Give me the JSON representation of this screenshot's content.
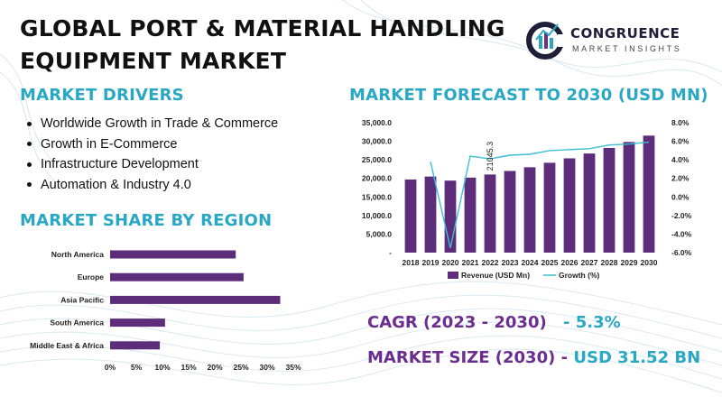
{
  "header": {
    "title_line1": "GLOBAL PORT & MATERIAL HANDLING",
    "title_line2": "EQUIPMENT MARKET"
  },
  "logo": {
    "name": "CONGRUENCE",
    "subtitle": "MARKET INSIGHTS",
    "icon": "cm-logo-icon"
  },
  "drivers": {
    "heading": "MARKET DRIVERS",
    "items": [
      "Worldwide Growth in Trade & Commerce",
      "Growth in E-Commerce",
      "Infrastructure Development",
      "Automation & Industry 4.0"
    ]
  },
  "share": {
    "heading": "MARKET SHARE BY REGION"
  },
  "forecast": {
    "heading": "MARKET FORECAST TO 2030 (USD MN)"
  },
  "stats": {
    "cagr_label": "CAGR (2023 - 2030)",
    "cagr_value": "- 5.3%",
    "size_label": "MARKET SIZE (2030)",
    "size_sep": "-",
    "size_value": "USD 31.52 BN"
  },
  "colors": {
    "accent": "#29a8c4",
    "brand_purple": "#6b2d8e",
    "bar_purple": "#5e2d79",
    "growth_line": "#3bbfd6"
  },
  "chart_data": [
    {
      "type": "bar",
      "orientation": "horizontal",
      "title": "MARKET SHARE BY REGION",
      "categories": [
        "North America",
        "Europe",
        "Asia Pacific",
        "South America",
        "Middle East & Africa"
      ],
      "values": [
        24,
        25.5,
        32.5,
        10.5,
        9.5
      ],
      "xlim": [
        0,
        35
      ],
      "ticks": [
        "0%",
        "5%",
        "10%",
        "15%",
        "20%",
        "25%",
        "30%",
        "35%"
      ],
      "grid": false
    },
    {
      "type": "bar",
      "title": "MARKET FORECAST TO 2030 (USD MN)",
      "categories": [
        "2018",
        "2019",
        "2020",
        "2021",
        "2022",
        "2023",
        "2024",
        "2025",
        "2026",
        "2027",
        "2028",
        "2029",
        "2030"
      ],
      "series": [
        {
          "name": "Revenue (USD Mn)",
          "type": "bar",
          "axis": "left",
          "values": [
            19700,
            20500,
            19400,
            20200,
            21045.3,
            22000,
            23000,
            24200,
            25400,
            26700,
            28200,
            29800,
            31520
          ]
        },
        {
          "name": "Growth (%)",
          "type": "line",
          "axis": "right",
          "values": [
            null,
            3.8,
            -5.5,
            4.4,
            4.1,
            4.5,
            4.6,
            5.0,
            5.1,
            5.2,
            5.6,
            5.7,
            5.9
          ]
        }
      ],
      "annotation": {
        "category": "2022",
        "text": "21045.3"
      },
      "y_left": {
        "range": [
          0,
          35000
        ],
        "ticks": [
          "-",
          "5,000.0",
          "10,000.0",
          "15,000.0",
          "20,000.0",
          "25,000.0",
          "30,000.0",
          "35,000.0"
        ]
      },
      "y_right": {
        "range": [
          -6,
          8
        ],
        "ticks": [
          "-6.0%",
          "-4.0%",
          "-2.0%",
          "0.0%",
          "2.0%",
          "4.0%",
          "6.0%",
          "8.0%"
        ]
      },
      "legend_position": "bottom",
      "grid": false
    }
  ]
}
